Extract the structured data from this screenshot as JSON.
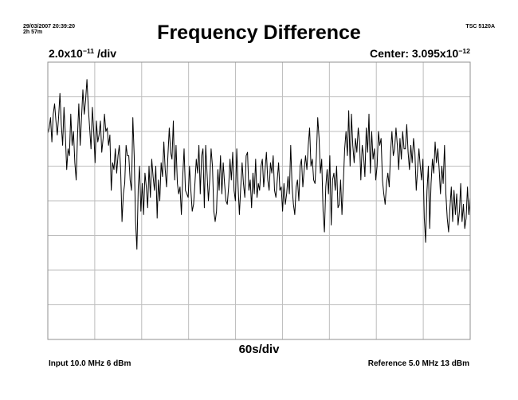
{
  "header": {
    "timestamp": "29/03/2007 20:39:20",
    "elapsed": "2h 57m",
    "instrument": "TSC 5120A"
  },
  "footer": {
    "input": "Input 10.0 MHz 6 dBm",
    "reference": "Reference 5.0 MHz 13 dBm"
  },
  "chart_data": {
    "type": "line",
    "title": "Frequency Difference",
    "y_scale": {
      "mantissa": "2.0x10",
      "exponent": "−11",
      "unit": " /div"
    },
    "center": {
      "label": "Center: 3.095x10",
      "exponent": "−12"
    },
    "x_scale_label": "60s/div",
    "x_divisions": 9,
    "y_divisions": 8,
    "grid": true,
    "x_unit": "s",
    "y_unit": "divisions from center",
    "series": [
      {
        "values": [
          1.95,
          2.1,
          2.4,
          1.7,
          2.5,
          2.8,
          2.3,
          1.9,
          2.4,
          3.1,
          2.2,
          1.6,
          2.7,
          1.9,
          0.9,
          1.5,
          1.3,
          2.5,
          1.6,
          2.0,
          1.1,
          0.6,
          1.9,
          2.8,
          1.6,
          2.4,
          3.2,
          2.5,
          2.9,
          3.5,
          2.7,
          2.1,
          1.5,
          2.7,
          2.0,
          1.1,
          2.3,
          1.7,
          1.9,
          2.3,
          1.4,
          1.8,
          2.5,
          2.0,
          2.1,
          1.6,
          1.9,
          0.3,
          1.1,
          0.9,
          1.5,
          0.8,
          1.3,
          1.6,
          0.9,
          -0.6,
          0.2,
          0.5,
          1.6,
          1.3,
          1.3,
          0.6,
          0.3,
          2.4,
          1.3,
          -0.6,
          -1.4,
          0.4,
          1.0,
          -0.3,
          0.5,
          -0.4,
          0.8,
          0.4,
          -0.2,
          1.0,
          0.1,
          1.2,
          0.7,
          0.3,
          1.0,
          -0.5,
          0.6,
          0.0,
          1.1,
          0.7,
          1.7,
          0.9,
          0.4,
          1.3,
          2.1,
          1.4,
          1.2,
          2.3,
          0.6,
          1.6,
          0.5,
          0.2,
          0.4,
          -0.4,
          0.7,
          1.5,
          0.3,
          0.2,
          0.1,
          1.0,
          0.3,
          -0.3,
          -0.1,
          0.5,
          1.2,
          0.8,
          1.6,
          0.2,
          1.3,
          1.5,
          -0.2,
          1.6,
          0.8,
          0.0,
          0.6,
          1.5,
          1.0,
          -0.3,
          -0.6,
          -0.3,
          0.9,
          0.3,
          1.3,
          0.2,
          1.1,
          0.5,
          0.0,
          -0.1,
          0.4,
          1.2,
          0.6,
          1.4,
          0.3,
          0.0,
          1.5,
          0.4,
          -0.4,
          0.4,
          1.1,
          0.5,
          0.1,
          1.3,
          1.4,
          0.3,
          0.6,
          -0.2,
          0.8,
          0.2,
          1.2,
          0.1,
          0.5,
          0.3,
          1.0,
          1.2,
          0.4,
          0.9,
          1.4,
          0.6,
          0.3,
          1.1,
          0.8,
          1.3,
          0.3,
          0.1,
          0.6,
          1.1,
          0.3,
          0.4,
          -0.3,
          0.5,
          -0.1,
          0.2,
          0.7,
          0.2,
          1.6,
          0.4,
          -0.1,
          -0.4,
          0.4,
          0.6,
          0.0,
          1.0,
          1.2,
          0.4,
          0.9,
          1.3,
          0.9,
          1.6,
          2.1,
          1.0,
          1.2,
          0.6,
          0.5,
          1.3,
          2.4,
          1.8,
          0.8,
          1.2,
          -0.3,
          -0.9,
          0.4,
          0.9,
          0.2,
          1.3,
          -0.7,
          0.6,
          0.8,
          0.3,
          1.0,
          -0.2,
          -0.1,
          0.6,
          -0.4,
          0.5,
          1.5,
          2.0,
          1.3,
          2.6,
          1.0,
          2.5,
          1.6,
          1.1,
          1.8,
          1.4,
          2.1,
          1.7,
          0.6,
          1.6,
          1.3,
          0.7,
          2.1,
          1.4,
          2.5,
          0.8,
          2.0,
          1.2,
          1.5,
          0.6,
          1.0,
          2.0,
          1.6,
          1.8,
          0.6,
          0.2,
          -0.1,
          0.5,
          0.8,
          0.4,
          1.4,
          2.0,
          1.3,
          1.5,
          2.1,
          1.6,
          0.9,
          1.8,
          1.2,
          2.0,
          1.5,
          1.5,
          2.2,
          1.4,
          0.9,
          1.6,
          1.1,
          1.8,
          1.4,
          0.3,
          0.9,
          1.5,
          1.0,
          0.6,
          1.2,
          -0.5,
          -1.2,
          0.3,
          1.0,
          -0.8,
          0.5,
          1.2,
          0.8,
          1.7,
          1.1,
          1.5,
          0.9,
          0.2,
          1.0,
          0.5,
          1.6,
          0.2,
          -0.5,
          -0.9,
          -0.2,
          0.4,
          -0.6,
          0.3,
          -0.4,
          0.2,
          -0.7,
          -0.3,
          0.5,
          -0.6,
          -0.1,
          -0.8,
          -0.5,
          0.4,
          -0.4,
          0.1
        ]
      }
    ]
  },
  "colors": {
    "background": "#ffffff",
    "grid": "#bdbdbd",
    "frame": "#909090",
    "trace": "#000000"
  }
}
